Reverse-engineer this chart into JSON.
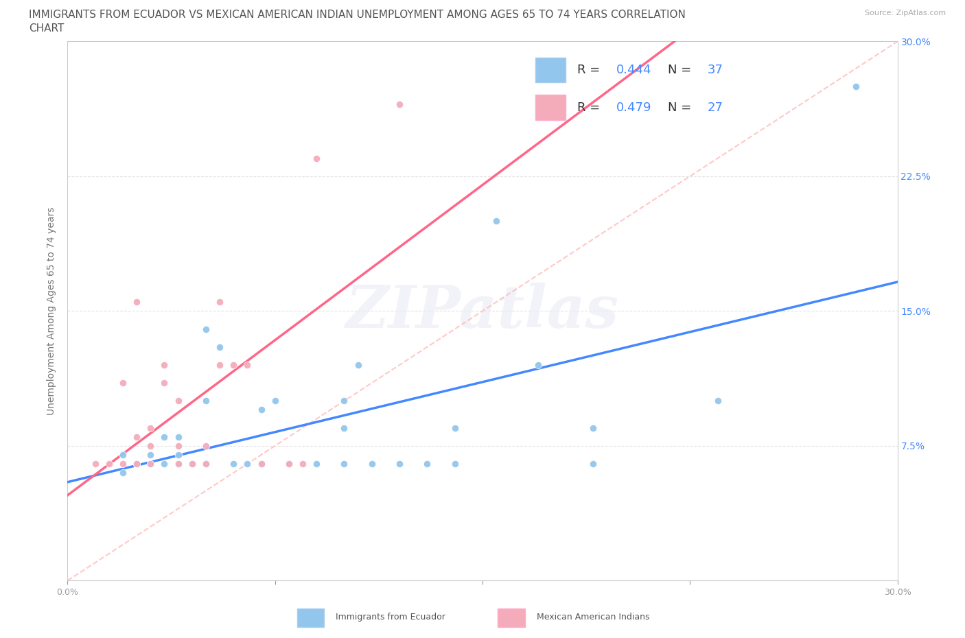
{
  "title_line1": "IMMIGRANTS FROM ECUADOR VS MEXICAN AMERICAN INDIAN UNEMPLOYMENT AMONG AGES 65 TO 74 YEARS CORRELATION",
  "title_line2": "CHART",
  "source": "Source: ZipAtlas.com",
  "ylabel": "Unemployment Among Ages 65 to 74 years",
  "xlim": [
    0.0,
    0.3
  ],
  "ylim": [
    0.0,
    0.3
  ],
  "xticks": [
    0.0,
    0.075,
    0.15,
    0.225,
    0.3
  ],
  "yticks": [
    0.0,
    0.075,
    0.15,
    0.225,
    0.3
  ],
  "blue_color": "#93C6ED",
  "pink_color": "#F4ACBB",
  "blue_line_color": "#4488FF",
  "pink_line_color": "#FF6688",
  "diagonal_color": "#FFBBBB",
  "R_blue": 0.444,
  "N_blue": 37,
  "R_pink": 0.479,
  "N_pink": 27,
  "background_color": "#FFFFFF",
  "watermark": "ZIPatlas",
  "blue_scatter": [
    [
      0.02,
      0.06
    ],
    [
      0.02,
      0.07
    ],
    [
      0.025,
      0.065
    ],
    [
      0.03,
      0.065
    ],
    [
      0.03,
      0.07
    ],
    [
      0.035,
      0.065
    ],
    [
      0.035,
      0.08
    ],
    [
      0.04,
      0.065
    ],
    [
      0.04,
      0.07
    ],
    [
      0.04,
      0.08
    ],
    [
      0.045,
      0.065
    ],
    [
      0.05,
      0.065
    ],
    [
      0.05,
      0.1
    ],
    [
      0.05,
      0.14
    ],
    [
      0.055,
      0.13
    ],
    [
      0.06,
      0.065
    ],
    [
      0.065,
      0.065
    ],
    [
      0.07,
      0.065
    ],
    [
      0.07,
      0.095
    ],
    [
      0.075,
      0.1
    ],
    [
      0.08,
      0.065
    ],
    [
      0.09,
      0.065
    ],
    [
      0.1,
      0.065
    ],
    [
      0.1,
      0.085
    ],
    [
      0.1,
      0.1
    ],
    [
      0.105,
      0.12
    ],
    [
      0.11,
      0.065
    ],
    [
      0.12,
      0.065
    ],
    [
      0.13,
      0.065
    ],
    [
      0.14,
      0.065
    ],
    [
      0.14,
      0.085
    ],
    [
      0.155,
      0.2
    ],
    [
      0.17,
      0.12
    ],
    [
      0.19,
      0.065
    ],
    [
      0.19,
      0.085
    ],
    [
      0.235,
      0.1
    ],
    [
      0.285,
      0.275
    ]
  ],
  "pink_scatter": [
    [
      0.01,
      0.065
    ],
    [
      0.015,
      0.065
    ],
    [
      0.02,
      0.065
    ],
    [
      0.02,
      0.11
    ],
    [
      0.025,
      0.065
    ],
    [
      0.025,
      0.08
    ],
    [
      0.025,
      0.155
    ],
    [
      0.03,
      0.065
    ],
    [
      0.03,
      0.075
    ],
    [
      0.03,
      0.085
    ],
    [
      0.035,
      0.11
    ],
    [
      0.035,
      0.12
    ],
    [
      0.04,
      0.065
    ],
    [
      0.04,
      0.075
    ],
    [
      0.04,
      0.1
    ],
    [
      0.045,
      0.065
    ],
    [
      0.05,
      0.065
    ],
    [
      0.05,
      0.075
    ],
    [
      0.055,
      0.12
    ],
    [
      0.055,
      0.155
    ],
    [
      0.06,
      0.12
    ],
    [
      0.065,
      0.12
    ],
    [
      0.07,
      0.065
    ],
    [
      0.08,
      0.065
    ],
    [
      0.085,
      0.065
    ],
    [
      0.09,
      0.235
    ],
    [
      0.12,
      0.265
    ]
  ],
  "grid_color": "#DDDDDD",
  "title_fontsize": 11,
  "label_fontsize": 10,
  "tick_fontsize": 9,
  "legend_fontsize": 13
}
